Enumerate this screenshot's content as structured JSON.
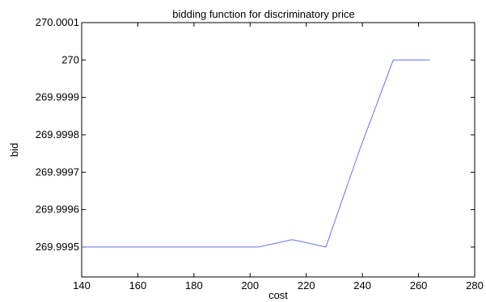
{
  "chart_data": {
    "type": "line",
    "title": "bidding function for  discriminatory price",
    "xlabel": "cost",
    "ylabel": "bid",
    "xlim": [
      140,
      280
    ],
    "ylim": [
      269.99942,
      270.0001
    ],
    "x_ticks": [
      140,
      160,
      180,
      200,
      220,
      240,
      260,
      280
    ],
    "x_tick_labels": [
      "140",
      "160",
      "180",
      "200",
      "220",
      "240",
      "260",
      "280"
    ],
    "y_ticks": [
      269.9995,
      269.9996,
      269.9997,
      269.9998,
      269.9999,
      270.0,
      270.0001
    ],
    "y_tick_labels": [
      "269.9995",
      "269.9996",
      "269.9997",
      "269.9998",
      "269.9999",
      "270",
      "270.0001"
    ],
    "grid": false,
    "series": [
      {
        "color": "#6b6bff",
        "x": [
          140,
          203,
          215,
          227,
          239,
          251,
          264
        ],
        "y": [
          269.9995,
          269.9995,
          269.99952,
          269.9995,
          269.99976,
          270.0,
          270.0
        ]
      }
    ]
  }
}
